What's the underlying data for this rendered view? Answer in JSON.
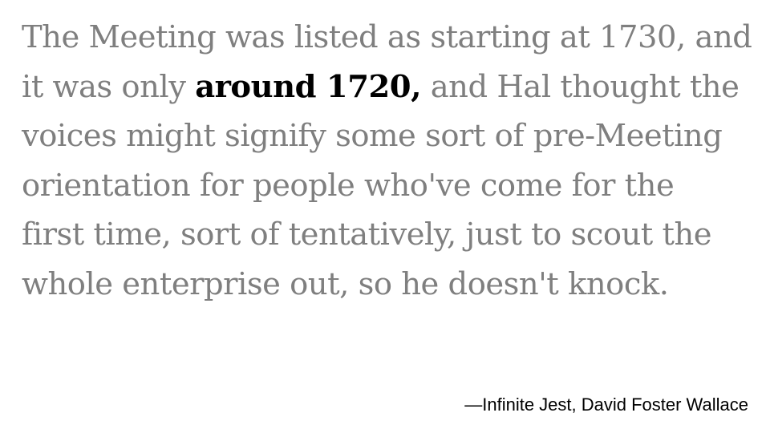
{
  "quote": {
    "line1": "The Meeting was listed as starting at 1730, and",
    "line2_before": "it was only ",
    "line2_highlight": "around 1720,",
    "line2_after": " and Hal thought the",
    "line3": "voices might signify some sort of pre-Meeting",
    "line4": "orientation for people who've come for the",
    "line5": "first time, sort of tentatively, just to scout the",
    "line6": "whole enterprise out, so he doesn't knock."
  },
  "attribution": "—Infinite Jest, David Foster Wallace",
  "colors": {
    "body_text": "#7f7f7f",
    "highlight_text": "#000000",
    "background": "#ffffff"
  }
}
